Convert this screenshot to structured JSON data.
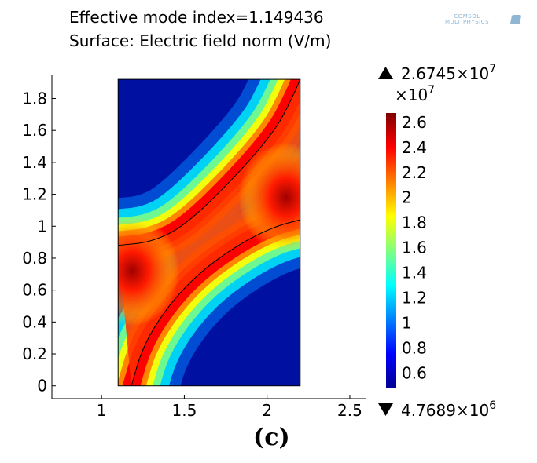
{
  "header": {
    "line1": "Effective mode index=1.149436",
    "line2": "Surface: Electric field norm (V/m)"
  },
  "logo": {
    "brand": "COMSOL",
    "sub": "MULTIPHYSICS"
  },
  "caption": "(c)",
  "colors": {
    "jet": [
      "#00008f",
      "#0000ff",
      "#0080ff",
      "#00ffff",
      "#80ff80",
      "#ffff00",
      "#ff8000",
      "#ff0000",
      "#800000"
    ],
    "boundary": "#000000"
  },
  "chart_data": {
    "type": "heatmap",
    "title": "Effective mode index=1.149436",
    "subtitle": "Surface: Electric field norm (V/m)",
    "xlabel": "",
    "ylabel": "",
    "xlim": [
      0.7,
      2.6
    ],
    "ylim": [
      -0.08,
      1.95
    ],
    "x_ticks": [
      "1",
      "1.5",
      "2",
      "2.5"
    ],
    "y_ticks": [
      "0",
      "0.2",
      "0.4",
      "0.6",
      "0.8",
      "1",
      "1.2",
      "1.4",
      "1.6",
      "1.8"
    ],
    "domain": {
      "x": [
        1.1,
        2.2
      ],
      "y": [
        0,
        1.92
      ]
    },
    "colorbar": {
      "multiplier": "×10",
      "multiplier_exp": "7",
      "ticks": [
        "2.6",
        "2.4",
        "2.2",
        "2",
        "1.8",
        "1.6",
        "1.4",
        "1.2",
        "1",
        "0.8",
        "0.6"
      ],
      "tick_values": [
        2.6,
        2.4,
        2.2,
        2.0,
        1.8,
        1.6,
        1.4,
        1.2,
        1.0,
        0.8,
        0.6
      ],
      "range": [
        0.47689,
        2.6745
      ],
      "max_label": "2.6745×10",
      "max_exp": "7",
      "min_label": "4.7689×10",
      "min_exp": "6"
    },
    "boundaries": [
      {
        "name": "upper",
        "points": [
          [
            1.1,
            0.88
          ],
          [
            1.3,
            0.9
          ],
          [
            1.5,
            1.0
          ],
          [
            1.8,
            1.3
          ],
          [
            2.05,
            1.6
          ],
          [
            2.15,
            1.8
          ],
          [
            2.2,
            1.92
          ]
        ]
      },
      {
        "name": "lower",
        "points": [
          [
            1.18,
            0.0
          ],
          [
            1.25,
            0.25
          ],
          [
            1.4,
            0.5
          ],
          [
            1.6,
            0.72
          ],
          [
            1.85,
            0.9
          ],
          [
            2.05,
            1.0
          ],
          [
            2.2,
            1.04
          ]
        ]
      }
    ]
  }
}
